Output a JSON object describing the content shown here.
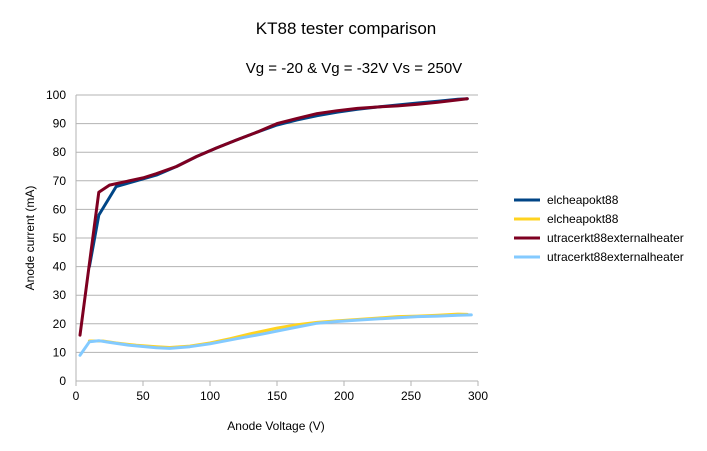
{
  "chart_data": {
    "type": "line",
    "title": "KT88 tester comparison",
    "subtitle": "Vg = -20 & Vg = -32V Vs = 250V",
    "xlabel": "Anode Voltage (V)",
    "ylabel": "Anode current (mA)",
    "xlim": [
      0,
      300
    ],
    "ylim": [
      0,
      100
    ],
    "xticks": [
      0,
      50,
      100,
      150,
      200,
      250,
      300
    ],
    "yticks": [
      0,
      10,
      20,
      30,
      40,
      50,
      60,
      70,
      80,
      90,
      100
    ],
    "grid": "horizontal",
    "legend_position": "right",
    "series": [
      {
        "name": "elcheapokt88",
        "color": "#004586",
        "x": [
          10,
          17,
          30,
          45,
          60,
          75,
          90,
          105,
          120,
          135,
          150,
          165,
          180,
          195,
          210,
          225,
          240,
          255,
          270,
          285,
          292
        ],
        "y": [
          40,
          58,
          68,
          70,
          72,
          75,
          78.5,
          81.5,
          84.3,
          87,
          89.5,
          91.3,
          92.8,
          94,
          95,
          95.8,
          96.5,
          97.2,
          97.8,
          98.5,
          98.7
        ]
      },
      {
        "name": "elcheapokt88",
        "color": "#ffd320",
        "x": [
          10,
          20,
          30,
          45,
          60,
          70,
          85,
          100,
          115,
          130,
          150,
          165,
          180,
          195,
          210,
          225,
          240,
          255,
          270,
          285,
          292
        ],
        "y": [
          14,
          14,
          13.3,
          12.5,
          12,
          11.7,
          12.2,
          13.3,
          14.8,
          16.5,
          18.5,
          19.7,
          20.5,
          21,
          21.5,
          22,
          22.5,
          22.7,
          23,
          23.4,
          23.3
        ]
      },
      {
        "name": "utracerkt88externalheater",
        "color": "#7e0021",
        "x": [
          3,
          17,
          25,
          35,
          50,
          60,
          75,
          90,
          105,
          120,
          135,
          150,
          165,
          180,
          195,
          210,
          225,
          240,
          255,
          270,
          285,
          292
        ],
        "y": [
          16,
          66,
          68.5,
          69.5,
          71,
          72.5,
          75,
          78.5,
          81.5,
          84.3,
          87,
          90,
          91.8,
          93.5,
          94.5,
          95.3,
          95.8,
          96.2,
          96.8,
          97.5,
          98.3,
          98.7
        ]
      },
      {
        "name": "utracerkt88externalheater",
        "color": "#83caff",
        "x": [
          3,
          10,
          17,
          25,
          40,
          60,
          70,
          85,
          100,
          120,
          140,
          160,
          180,
          195,
          210,
          225,
          240,
          255,
          270,
          285,
          295
        ],
        "y": [
          9,
          13.7,
          14.1,
          13.5,
          12.5,
          11.6,
          11.4,
          12,
          13,
          14.8,
          16.5,
          18.4,
          20.2,
          20.8,
          21.3,
          21.7,
          22.1,
          22.5,
          22.7,
          23,
          23.1
        ]
      }
    ]
  }
}
